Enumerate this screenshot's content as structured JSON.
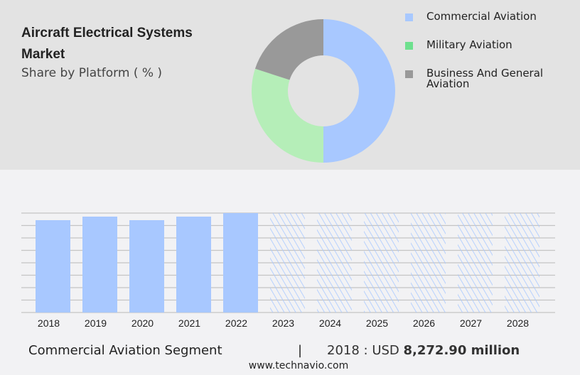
{
  "title": "Aircraft Electrical Systems Market",
  "subtitle": "Share by Platform ( % )",
  "chart_data": [
    {
      "type": "pie",
      "donut": true,
      "title": "Share by Platform ( % )",
      "legend": [
        "Commercial Aviation",
        "Military Aviation",
        "Business And General Aviation"
      ],
      "values": [
        50,
        30,
        20
      ],
      "colors": [
        "#a8c8ff",
        "#b5eeb8",
        "#999999"
      ],
      "legend_colors": [
        "#a8c8ff",
        "#6ee08e",
        "#999999"
      ],
      "legend_placement": "right"
    },
    {
      "type": "bar",
      "categories": [
        "2018",
        "2019",
        "2020",
        "2021",
        "2022",
        "2023",
        "2024",
        "2025",
        "2026",
        "2027",
        "2028"
      ],
      "values": [
        8272.9,
        8591,
        8272.9,
        8591,
        8909,
        null,
        null,
        null,
        null,
        null,
        null
      ],
      "forecast": [
        false,
        false,
        false,
        false,
        false,
        true,
        true,
        true,
        true,
        true,
        true
      ],
      "ylim": [
        0,
        8909
      ],
      "grid": true,
      "xlabel": "",
      "ylabel": "",
      "color": "#a8c8ff"
    }
  ],
  "footer": {
    "segment": "Commercial Aviation Segment",
    "divider": "|",
    "year_label": "2018 : USD",
    "value": "8,272.90 million",
    "url": "www.technavio.com"
  }
}
